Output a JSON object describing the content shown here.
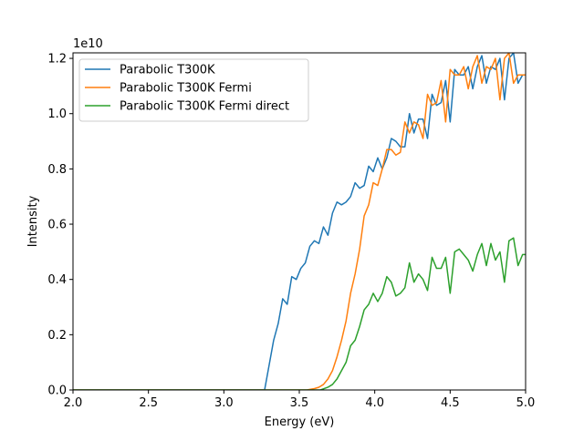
{
  "chart_data": {
    "type": "line",
    "xlabel": "Energy (eV)",
    "ylabel": "Intensity",
    "offset_text": "1e10",
    "xlim": [
      2.0,
      5.0
    ],
    "ylim": [
      0,
      1.22
    ],
    "x_ticks": [
      2.0,
      2.5,
      3.0,
      3.5,
      4.0,
      4.5,
      5.0
    ],
    "x_tick_labels": [
      "2.0",
      "2.5",
      "3.0",
      "3.5",
      "4.0",
      "4.5",
      "5.0"
    ],
    "y_ticks": [
      0.0,
      0.2,
      0.4,
      0.6,
      0.8,
      1.0,
      1.2
    ],
    "y_tick_labels": [
      "0.0",
      "0.2",
      "0.4",
      "0.6",
      "0.8",
      "1.0",
      "1.2"
    ],
    "legend_position": "top-left",
    "series": [
      {
        "name": "Parabolic T300K",
        "color": "#1f77b4",
        "x": [
          2.0,
          3.27,
          3.3,
          3.33,
          3.36,
          3.39,
          3.42,
          3.45,
          3.48,
          3.51,
          3.54,
          3.57,
          3.6,
          3.63,
          3.66,
          3.69,
          3.72,
          3.75,
          3.78,
          3.81,
          3.84,
          3.87,
          3.9,
          3.93,
          3.96,
          3.99,
          4.02,
          4.05,
          4.08,
          4.11,
          4.14,
          4.17,
          4.2,
          4.23,
          4.26,
          4.29,
          4.32,
          4.35,
          4.38,
          4.41,
          4.44,
          4.47,
          4.5,
          4.53,
          4.56,
          4.59,
          4.62,
          4.65,
          4.68,
          4.71,
          4.74,
          4.77,
          4.8,
          4.83,
          4.86,
          4.89,
          4.92,
          4.95,
          4.98,
          5.0
        ],
        "y": [
          0.0,
          0.0,
          0.09,
          0.18,
          0.24,
          0.33,
          0.31,
          0.41,
          0.4,
          0.44,
          0.46,
          0.52,
          0.54,
          0.53,
          0.59,
          0.56,
          0.64,
          0.68,
          0.67,
          0.68,
          0.7,
          0.75,
          0.73,
          0.74,
          0.81,
          0.79,
          0.84,
          0.8,
          0.84,
          0.91,
          0.9,
          0.88,
          0.88,
          1.0,
          0.93,
          0.98,
          0.98,
          0.91,
          1.07,
          1.03,
          1.04,
          1.12,
          0.97,
          1.16,
          1.14,
          1.14,
          1.17,
          1.09,
          1.17,
          1.21,
          1.11,
          1.17,
          1.16,
          1.2,
          1.05,
          1.2,
          1.22,
          1.11,
          1.14,
          1.14
        ]
      },
      {
        "name": "Parabolic T300K Fermi",
        "color": "#ff7f0e",
        "x": [
          2.0,
          3.55,
          3.6,
          3.63,
          3.66,
          3.69,
          3.72,
          3.75,
          3.78,
          3.81,
          3.84,
          3.87,
          3.9,
          3.93,
          3.96,
          3.99,
          4.02,
          4.05,
          4.08,
          4.11,
          4.14,
          4.17,
          4.2,
          4.23,
          4.26,
          4.29,
          4.32,
          4.35,
          4.38,
          4.41,
          4.44,
          4.47,
          4.5,
          4.53,
          4.56,
          4.59,
          4.62,
          4.65,
          4.68,
          4.71,
          4.74,
          4.77,
          4.8,
          4.83,
          4.86,
          4.89,
          4.92,
          4.95,
          4.98,
          5.0
        ],
        "y": [
          0.0,
          0.0,
          0.005,
          0.01,
          0.02,
          0.04,
          0.07,
          0.12,
          0.18,
          0.25,
          0.35,
          0.42,
          0.51,
          0.63,
          0.67,
          0.75,
          0.74,
          0.8,
          0.87,
          0.87,
          0.85,
          0.86,
          0.97,
          0.93,
          0.97,
          0.96,
          0.91,
          1.07,
          1.03,
          1.04,
          1.12,
          0.97,
          1.16,
          1.14,
          1.14,
          1.17,
          1.09,
          1.17,
          1.21,
          1.11,
          1.17,
          1.16,
          1.2,
          1.05,
          1.2,
          1.22,
          1.11,
          1.14,
          1.14,
          1.14
        ]
      },
      {
        "name": "Parabolic T300K Fermi direct",
        "color": "#2ca02c",
        "x": [
          2.0,
          3.64,
          3.69,
          3.72,
          3.75,
          3.78,
          3.81,
          3.84,
          3.87,
          3.9,
          3.93,
          3.96,
          3.99,
          4.02,
          4.05,
          4.08,
          4.11,
          4.14,
          4.17,
          4.2,
          4.23,
          4.26,
          4.29,
          4.32,
          4.35,
          4.38,
          4.41,
          4.44,
          4.47,
          4.5,
          4.53,
          4.56,
          4.59,
          4.62,
          4.65,
          4.68,
          4.71,
          4.74,
          4.77,
          4.8,
          4.83,
          4.86,
          4.89,
          4.92,
          4.95,
          4.98,
          5.0
        ],
        "y": [
          0.0,
          0.0,
          0.01,
          0.02,
          0.04,
          0.07,
          0.1,
          0.16,
          0.18,
          0.23,
          0.29,
          0.31,
          0.35,
          0.32,
          0.35,
          0.41,
          0.39,
          0.34,
          0.35,
          0.37,
          0.46,
          0.39,
          0.42,
          0.4,
          0.36,
          0.48,
          0.44,
          0.44,
          0.48,
          0.35,
          0.5,
          0.51,
          0.49,
          0.47,
          0.43,
          0.49,
          0.53,
          0.45,
          0.53,
          0.47,
          0.5,
          0.39,
          0.54,
          0.55,
          0.45,
          0.49,
          0.49
        ]
      }
    ]
  }
}
